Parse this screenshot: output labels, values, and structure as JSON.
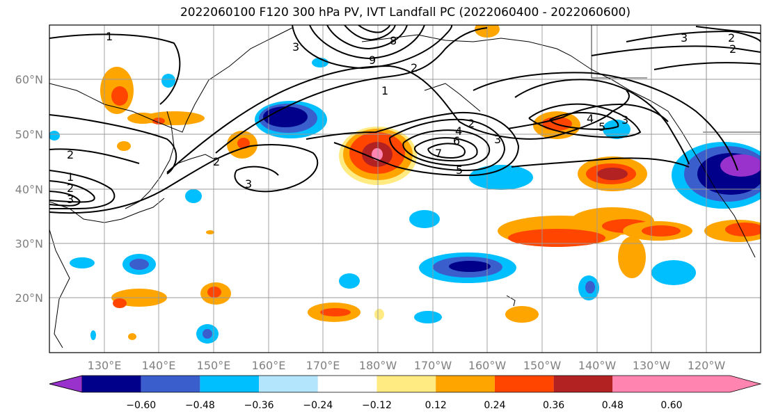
{
  "title": "2022060100 F120 300 hPa PV, IVT Landfall PC (2022060400 - 2022060600)",
  "map": {
    "lat_labels": [
      "60°N",
      "50°N",
      "40°N",
      "30°N",
      "20°N"
    ],
    "lon_labels": [
      "130°E",
      "140°E",
      "150°E",
      "160°E",
      "170°E",
      "180°W",
      "170°W",
      "160°W",
      "150°W",
      "140°W",
      "130°W",
      "120°W"
    ],
    "contour_labels": [
      {
        "text": "1"
      },
      {
        "text": "8"
      },
      {
        "text": "2"
      },
      {
        "text": "9"
      },
      {
        "text": "3"
      },
      {
        "text": "2"
      },
      {
        "text": "1"
      },
      {
        "text": "2"
      },
      {
        "text": "4"
      },
      {
        "text": "6"
      },
      {
        "text": "7"
      },
      {
        "text": "5"
      },
      {
        "text": "3"
      },
      {
        "text": "3"
      },
      {
        "text": "4"
      },
      {
        "text": "5"
      },
      {
        "text": "3"
      },
      {
        "text": "2"
      },
      {
        "text": "1"
      },
      {
        "text": "2"
      },
      {
        "text": "3"
      },
      {
        "text": "2"
      },
      {
        "text": "3"
      },
      {
        "text": "2"
      }
    ]
  },
  "colorbar": {
    "colors": [
      "#9932CC",
      "#00008B",
      "#3A5FCD",
      "#00BFFF",
      "#B3E5FC",
      "#FFFFFF",
      "#FFEB82",
      "#FFA500",
      "#FF4500",
      "#B22222",
      "#FF85B0"
    ],
    "tick_labels": [
      "−0.60",
      "−0.48",
      "−0.36",
      "−0.24",
      "−0.12",
      "0.12",
      "0.24",
      "0.36",
      "0.48",
      "0.60"
    ]
  }
}
